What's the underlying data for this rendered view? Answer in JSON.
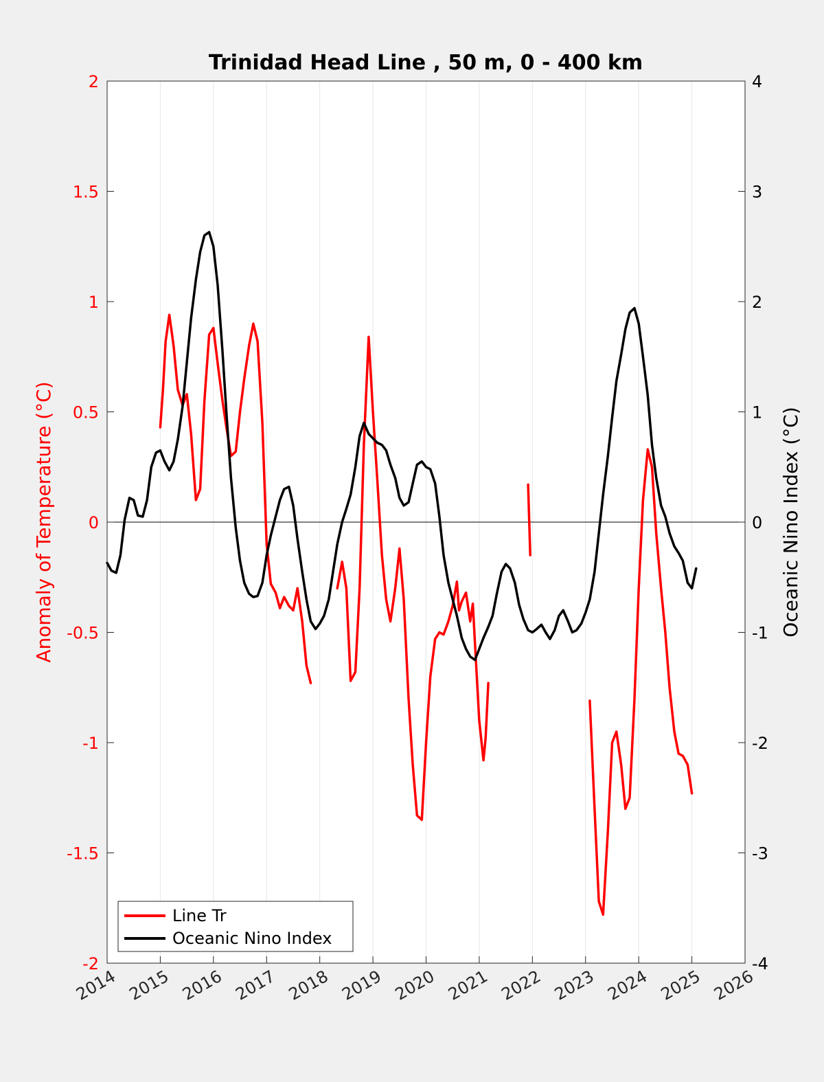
{
  "chart_data": {
    "type": "line",
    "title": "Trinidad Head Line , 50 m, 0 - 400 km",
    "ylabel_left": "Anomaly of Temperature (°C)",
    "ylabel_right": "Oceanic Nino Index (°C)",
    "xlim": [
      2014,
      2026
    ],
    "ylim_left": [
      -2,
      2
    ],
    "ylim_right": [
      -4,
      4
    ],
    "x_ticks": [
      "2014",
      "2015",
      "2016",
      "2017",
      "2018",
      "2019",
      "2020",
      "2021",
      "2022",
      "2023",
      "2024",
      "2025",
      "2026"
    ],
    "y_ticks_left": [
      "2",
      "1.5",
      "1",
      "0.5",
      "0",
      "-0.5",
      "-1",
      "-1.5",
      "-2"
    ],
    "y_ticks_right": [
      "4",
      "3",
      "2",
      "1",
      "0",
      "-1",
      "-2",
      "-3",
      "-4"
    ],
    "grid": "vertical",
    "legend_position": "bottom-left",
    "colors": {
      "line_tr": "#ff0000",
      "oni": "#000000",
      "left_axis": "#ff0000",
      "right_axis": "#000000"
    },
    "series": [
      {
        "name": "Line Tr",
        "axis": "left",
        "segments": [
          [
            [
              2015.0,
              0.43
            ],
            [
              2015.05,
              0.6
            ],
            [
              2015.1,
              0.82
            ],
            [
              2015.17,
              0.94
            ],
            [
              2015.25,
              0.8
            ],
            [
              2015.33,
              0.6
            ],
            [
              2015.42,
              0.53
            ],
            [
              2015.5,
              0.58
            ],
            [
              2015.58,
              0.4
            ],
            [
              2015.67,
              0.1
            ],
            [
              2015.75,
              0.15
            ],
            [
              2015.83,
              0.55
            ],
            [
              2015.92,
              0.85
            ],
            [
              2016.0,
              0.88
            ],
            [
              2016.08,
              0.72
            ],
            [
              2016.17,
              0.55
            ],
            [
              2016.25,
              0.42
            ],
            [
              2016.33,
              0.3
            ],
            [
              2016.42,
              0.32
            ],
            [
              2016.5,
              0.5
            ],
            [
              2016.58,
              0.65
            ],
            [
              2016.67,
              0.8
            ],
            [
              2016.75,
              0.9
            ],
            [
              2016.83,
              0.82
            ],
            [
              2016.92,
              0.45
            ],
            [
              2017.0,
              -0.1
            ],
            [
              2017.08,
              -0.28
            ],
            [
              2017.17,
              -0.32
            ],
            [
              2017.25,
              -0.39
            ],
            [
              2017.33,
              -0.34
            ],
            [
              2017.42,
              -0.38
            ],
            [
              2017.5,
              -0.4
            ],
            [
              2017.58,
              -0.3
            ],
            [
              2017.67,
              -0.45
            ],
            [
              2017.75,
              -0.65
            ],
            [
              2017.83,
              -0.73
            ]
          ],
          [
            [
              2018.33,
              -0.3
            ],
            [
              2018.42,
              -0.18
            ],
            [
              2018.5,
              -0.3
            ],
            [
              2018.58,
              -0.72
            ],
            [
              2018.67,
              -0.68
            ],
            [
              2018.75,
              -0.3
            ],
            [
              2018.83,
              0.35
            ],
            [
              2018.92,
              0.84
            ],
            [
              2019.0,
              0.5
            ],
            [
              2019.08,
              0.2
            ],
            [
              2019.17,
              -0.15
            ],
            [
              2019.25,
              -0.35
            ],
            [
              2019.33,
              -0.45
            ],
            [
              2019.42,
              -0.3
            ],
            [
              2019.5,
              -0.12
            ],
            [
              2019.58,
              -0.35
            ],
            [
              2019.67,
              -0.8
            ],
            [
              2019.75,
              -1.1
            ],
            [
              2019.83,
              -1.33
            ],
            [
              2019.92,
              -1.35
            ],
            [
              2020.0,
              -1.0
            ],
            [
              2020.08,
              -0.7
            ],
            [
              2020.17,
              -0.53
            ],
            [
              2020.25,
              -0.5
            ],
            [
              2020.33,
              -0.51
            ],
            [
              2020.42,
              -0.45
            ],
            [
              2020.5,
              -0.38
            ],
            [
              2020.58,
              -0.27
            ],
            [
              2020.62,
              -0.4
            ],
            [
              2020.67,
              -0.36
            ],
            [
              2020.75,
              -0.32
            ],
            [
              2020.83,
              -0.45
            ],
            [
              2020.88,
              -0.37
            ],
            [
              2020.92,
              -0.55
            ],
            [
              2021.0,
              -0.9
            ],
            [
              2021.08,
              -1.08
            ],
            [
              2021.12,
              -0.98
            ],
            [
              2021.17,
              -0.73
            ]
          ],
          [
            [
              2021.92,
              0.17
            ],
            [
              2021.96,
              -0.15
            ]
          ],
          [
            [
              2023.08,
              -0.81
            ],
            [
              2023.17,
              -1.3
            ],
            [
              2023.25,
              -1.72
            ],
            [
              2023.33,
              -1.78
            ],
            [
              2023.42,
              -1.4
            ],
            [
              2023.5,
              -1.0
            ],
            [
              2023.58,
              -0.95
            ],
            [
              2023.67,
              -1.1
            ],
            [
              2023.75,
              -1.3
            ],
            [
              2023.83,
              -1.25
            ],
            [
              2023.92,
              -0.8
            ],
            [
              2024.0,
              -0.3
            ],
            [
              2024.08,
              0.1
            ],
            [
              2024.17,
              0.33
            ],
            [
              2024.25,
              0.25
            ],
            [
              2024.33,
              -0.05
            ],
            [
              2024.42,
              -0.3
            ],
            [
              2024.5,
              -0.5
            ],
            [
              2024.58,
              -0.75
            ],
            [
              2024.67,
              -0.95
            ],
            [
              2024.75,
              -1.05
            ],
            [
              2024.83,
              -1.06
            ],
            [
              2024.92,
              -1.1
            ],
            [
              2025.0,
              -1.23
            ]
          ]
        ]
      },
      {
        "name": "Oceanic Nino Index",
        "axis": "right",
        "segments": [
          [
            [
              2014.0,
              -0.37
            ],
            [
              2014.08,
              -0.44
            ],
            [
              2014.17,
              -0.46
            ],
            [
              2014.25,
              -0.3
            ],
            [
              2014.33,
              0.02
            ],
            [
              2014.42,
              0.22
            ],
            [
              2014.5,
              0.2
            ],
            [
              2014.58,
              0.06
            ],
            [
              2014.67,
              0.05
            ],
            [
              2014.75,
              0.2
            ],
            [
              2014.83,
              0.5
            ],
            [
              2014.92,
              0.63
            ],
            [
              2015.0,
              0.65
            ],
            [
              2015.08,
              0.55
            ],
            [
              2015.17,
              0.47
            ],
            [
              2015.25,
              0.55
            ],
            [
              2015.33,
              0.75
            ],
            [
              2015.42,
              1.05
            ],
            [
              2015.5,
              1.45
            ],
            [
              2015.58,
              1.85
            ],
            [
              2015.67,
              2.2
            ],
            [
              2015.75,
              2.45
            ],
            [
              2015.83,
              2.6
            ],
            [
              2015.92,
              2.63
            ],
            [
              2016.0,
              2.5
            ],
            [
              2016.08,
              2.15
            ],
            [
              2016.17,
              1.55
            ],
            [
              2016.25,
              0.95
            ],
            [
              2016.33,
              0.4
            ],
            [
              2016.42,
              -0.05
            ],
            [
              2016.5,
              -0.35
            ],
            [
              2016.58,
              -0.55
            ],
            [
              2016.67,
              -0.65
            ],
            [
              2016.75,
              -0.68
            ],
            [
              2016.83,
              -0.67
            ],
            [
              2016.92,
              -0.55
            ],
            [
              2017.0,
              -0.3
            ],
            [
              2017.08,
              -0.12
            ],
            [
              2017.17,
              0.05
            ],
            [
              2017.25,
              0.2
            ],
            [
              2017.33,
              0.3
            ],
            [
              2017.42,
              0.32
            ],
            [
              2017.5,
              0.15
            ],
            [
              2017.58,
              -0.15
            ],
            [
              2017.67,
              -0.45
            ],
            [
              2017.75,
              -0.7
            ],
            [
              2017.83,
              -0.9
            ],
            [
              2017.92,
              -0.97
            ],
            [
              2018.0,
              -0.92
            ],
            [
              2018.08,
              -0.85
            ],
            [
              2018.17,
              -0.7
            ],
            [
              2018.25,
              -0.45
            ],
            [
              2018.33,
              -0.2
            ],
            [
              2018.42,
              0.0
            ],
            [
              2018.5,
              0.12
            ],
            [
              2018.58,
              0.25
            ],
            [
              2018.67,
              0.5
            ],
            [
              2018.75,
              0.78
            ],
            [
              2018.83,
              0.9
            ],
            [
              2018.92,
              0.8
            ],
            [
              2019.0,
              0.76
            ],
            [
              2019.08,
              0.72
            ],
            [
              2019.17,
              0.7
            ],
            [
              2019.25,
              0.65
            ],
            [
              2019.33,
              0.52
            ],
            [
              2019.42,
              0.4
            ],
            [
              2019.5,
              0.22
            ],
            [
              2019.58,
              0.15
            ],
            [
              2019.67,
              0.18
            ],
            [
              2019.75,
              0.35
            ],
            [
              2019.83,
              0.52
            ],
            [
              2019.92,
              0.55
            ],
            [
              2020.0,
              0.5
            ],
            [
              2020.08,
              0.48
            ],
            [
              2020.17,
              0.35
            ],
            [
              2020.25,
              0.05
            ],
            [
              2020.33,
              -0.3
            ],
            [
              2020.42,
              -0.55
            ],
            [
              2020.5,
              -0.7
            ],
            [
              2020.58,
              -0.85
            ],
            [
              2020.67,
              -1.05
            ],
            [
              2020.75,
              -1.15
            ],
            [
              2020.83,
              -1.22
            ],
            [
              2020.92,
              -1.25
            ],
            [
              2021.0,
              -1.15
            ],
            [
              2021.08,
              -1.05
            ],
            [
              2021.17,
              -0.95
            ],
            [
              2021.25,
              -0.85
            ],
            [
              2021.33,
              -0.65
            ],
            [
              2021.42,
              -0.45
            ],
            [
              2021.5,
              -0.38
            ],
            [
              2021.58,
              -0.42
            ],
            [
              2021.67,
              -0.55
            ],
            [
              2021.75,
              -0.75
            ],
            [
              2021.83,
              -0.88
            ],
            [
              2021.92,
              -0.98
            ],
            [
              2022.0,
              -1.0
            ],
            [
              2022.08,
              -0.97
            ],
            [
              2022.17,
              -0.93
            ],
            [
              2022.25,
              -1.0
            ],
            [
              2022.33,
              -1.06
            ],
            [
              2022.42,
              -0.98
            ],
            [
              2022.5,
              -0.85
            ],
            [
              2022.58,
              -0.8
            ],
            [
              2022.67,
              -0.9
            ],
            [
              2022.75,
              -1.0
            ],
            [
              2022.83,
              -0.98
            ],
            [
              2022.92,
              -0.92
            ],
            [
              2023.0,
              -0.82
            ],
            [
              2023.08,
              -0.7
            ],
            [
              2023.17,
              -0.45
            ],
            [
              2023.25,
              -0.1
            ],
            [
              2023.33,
              0.25
            ],
            [
              2023.42,
              0.6
            ],
            [
              2023.5,
              0.95
            ],
            [
              2023.58,
              1.28
            ],
            [
              2023.67,
              1.52
            ],
            [
              2023.75,
              1.75
            ],
            [
              2023.83,
              1.9
            ],
            [
              2023.92,
              1.94
            ],
            [
              2024.0,
              1.8
            ],
            [
              2024.08,
              1.5
            ],
            [
              2024.17,
              1.15
            ],
            [
              2024.25,
              0.7
            ],
            [
              2024.33,
              0.4
            ],
            [
              2024.42,
              0.15
            ],
            [
              2024.5,
              0.05
            ],
            [
              2024.58,
              -0.1
            ],
            [
              2024.67,
              -0.22
            ],
            [
              2024.75,
              -0.28
            ],
            [
              2024.83,
              -0.35
            ],
            [
              2024.92,
              -0.55
            ],
            [
              2025.0,
              -0.6
            ],
            [
              2025.08,
              -0.42
            ]
          ]
        ]
      }
    ]
  }
}
